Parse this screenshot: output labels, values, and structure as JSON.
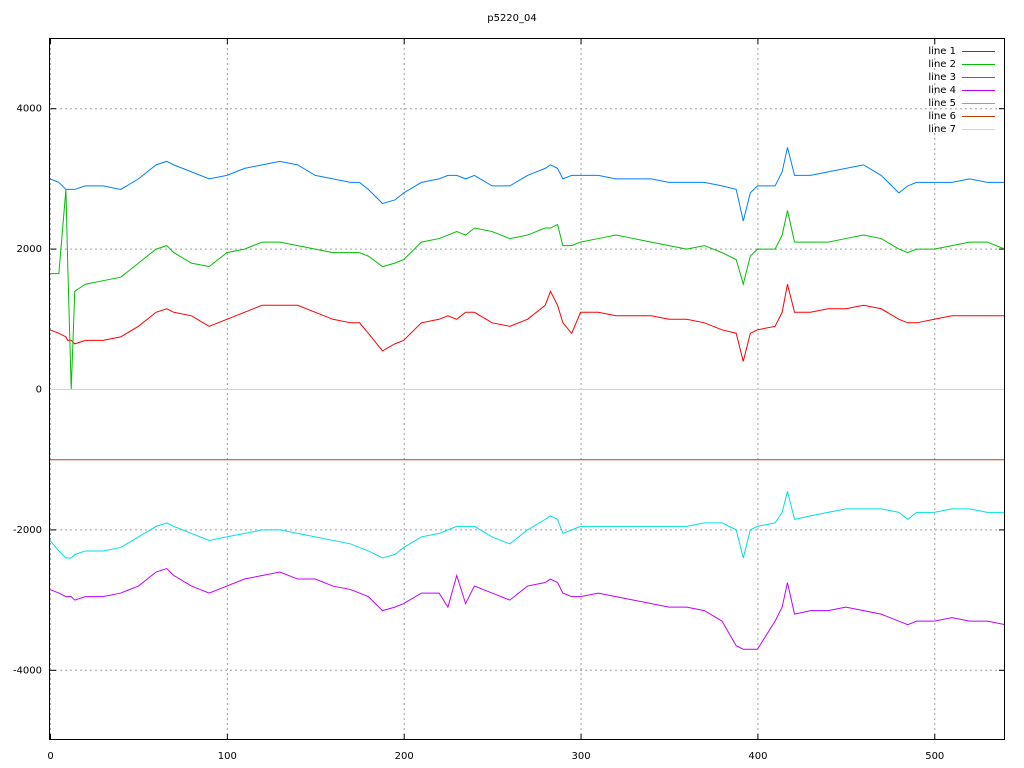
{
  "chart_data": {
    "type": "line",
    "title": "p5220_04",
    "x": [
      0,
      5,
      9,
      10,
      12,
      14,
      20,
      30,
      40,
      50,
      60,
      66,
      70,
      80,
      90,
      100,
      110,
      120,
      130,
      140,
      150,
      160,
      170,
      175,
      180,
      188,
      195,
      200,
      210,
      220,
      225,
      230,
      235,
      240,
      250,
      260,
      270,
      280,
      283,
      287,
      290,
      295,
      300,
      310,
      320,
      330,
      340,
      350,
      360,
      370,
      380,
      388,
      392,
      396,
      400,
      410,
      414,
      417,
      421,
      430,
      440,
      450,
      460,
      470,
      480,
      485,
      490,
      500,
      510,
      520,
      530,
      540
    ],
    "xlim": [
      0,
      540
    ],
    "xticks": [
      0,
      100,
      200,
      300,
      400,
      500
    ],
    "ylim": [
      -5000,
      5000
    ],
    "yticks": [
      -4000,
      -2000,
      0,
      2000,
      4000
    ],
    "grid": true,
    "legend": "top-right",
    "series": [
      {
        "name": "line 1",
        "color": "#ff0000",
        "values": [
          850,
          800,
          750,
          700,
          700,
          650,
          700,
          700,
          750,
          900,
          1100,
          1150,
          1100,
          1050,
          900,
          1000,
          1100,
          1200,
          1200,
          1200,
          1100,
          1000,
          950,
          950,
          800,
          550,
          650,
          700,
          950,
          1000,
          1050,
          1000,
          1100,
          1100,
          950,
          900,
          1000,
          1200,
          1400,
          1200,
          950,
          800,
          1100,
          1100,
          1050,
          1050,
          1050,
          1000,
          1000,
          950,
          850,
          800,
          400,
          800,
          850,
          900,
          1100,
          1500,
          1100,
          1100,
          1150,
          1150,
          1200,
          1150,
          1000,
          950,
          950,
          1000,
          1050,
          1050,
          1050,
          1050
        ]
      },
      {
        "name": "line 2",
        "color": "#00c000",
        "values": [
          1650,
          1650,
          2850,
          1800,
          0,
          1400,
          1500,
          1550,
          1600,
          1800,
          2000,
          2050,
          1950,
          1800,
          1750,
          1950,
          2000,
          2100,
          2100,
          2050,
          2000,
          1950,
          1950,
          1950,
          1900,
          1750,
          1800,
          1850,
          2100,
          2150,
          2200,
          2250,
          2200,
          2300,
          2250,
          2150,
          2200,
          2300,
          2300,
          2350,
          2050,
          2050,
          2100,
          2150,
          2200,
          2150,
          2100,
          2050,
          2000,
          2050,
          1950,
          1850,
          1500,
          1900,
          2000,
          2000,
          2200,
          2550,
          2100,
          2100,
          2100,
          2150,
          2200,
          2150,
          2000,
          1950,
          2000,
          2000,
          2050,
          2100,
          2100,
          2000
        ]
      },
      {
        "name": "line 3",
        "color": "#0080ff",
        "values": [
          3000,
          2950,
          2850,
          2850,
          2850,
          2850,
          2900,
          2900,
          2850,
          3000,
          3200,
          3250,
          3200,
          3100,
          3000,
          3050,
          3150,
          3200,
          3250,
          3200,
          3050,
          3000,
          2950,
          2950,
          2850,
          2650,
          2700,
          2800,
          2950,
          3000,
          3050,
          3050,
          3000,
          3050,
          2900,
          2900,
          3050,
          3150,
          3200,
          3150,
          3000,
          3050,
          3050,
          3050,
          3000,
          3000,
          3000,
          2950,
          2950,
          2950,
          2900,
          2850,
          2400,
          2800,
          2900,
          2900,
          3100,
          3450,
          3050,
          3050,
          3100,
          3150,
          3200,
          3050,
          2800,
          2900,
          2950,
          2950,
          2950,
          3000,
          2950,
          2950
        ]
      },
      {
        "name": "line 4",
        "color": "#c000ff",
        "values": [
          -2850,
          -2900,
          -2950,
          -2950,
          -2950,
          -3000,
          -2950,
          -2950,
          -2900,
          -2800,
          -2600,
          -2550,
          -2650,
          -2800,
          -2900,
          -2800,
          -2700,
          -2650,
          -2600,
          -2700,
          -2700,
          -2800,
          -2850,
          -2900,
          -2950,
          -3150,
          -3100,
          -3050,
          -2900,
          -2900,
          -3100,
          -2650,
          -3050,
          -2800,
          -2900,
          -3000,
          -2800,
          -2750,
          -2700,
          -2750,
          -2900,
          -2950,
          -2950,
          -2900,
          -2950,
          -3000,
          -3050,
          -3100,
          -3100,
          -3150,
          -3300,
          -3650,
          -3700,
          -3700,
          -3700,
          -3300,
          -3100,
          -2750,
          -3200,
          -3150,
          -3150,
          -3100,
          -3150,
          -3200,
          -3300,
          -3350,
          -3300,
          -3300,
          -3250,
          -3300,
          -3300,
          -3350
        ]
      },
      {
        "name": "line 5",
        "color": "#00e0e0",
        "values": [
          -2150,
          -2300,
          -2400,
          -2400,
          -2400,
          -2350,
          -2300,
          -2300,
          -2250,
          -2100,
          -1950,
          -1900,
          -1950,
          -2050,
          -2150,
          -2100,
          -2050,
          -2000,
          -2000,
          -2050,
          -2100,
          -2150,
          -2200,
          -2250,
          -2300,
          -2400,
          -2350,
          -2250,
          -2100,
          -2050,
          -2000,
          -1950,
          -1950,
          -1950,
          -2100,
          -2200,
          -2000,
          -1850,
          -1800,
          -1850,
          -2050,
          -2000,
          -1950,
          -1950,
          -1950,
          -1950,
          -1950,
          -1950,
          -1950,
          -1900,
          -1900,
          -2000,
          -2400,
          -2000,
          -1950,
          -1900,
          -1750,
          -1450,
          -1850,
          -1800,
          -1750,
          -1700,
          -1700,
          -1700,
          -1750,
          -1850,
          -1750,
          -1750,
          -1700,
          -1700,
          -1750,
          -1750
        ]
      },
      {
        "name": "line 6",
        "color": "#c04000",
        "x": [
          0,
          540
        ],
        "values": [
          -1000,
          -1000
        ]
      },
      {
        "name": "line 7",
        "color": "#eeee00",
        "x": [
          0,
          540
        ],
        "values": [
          0,
          0
        ]
      }
    ]
  }
}
